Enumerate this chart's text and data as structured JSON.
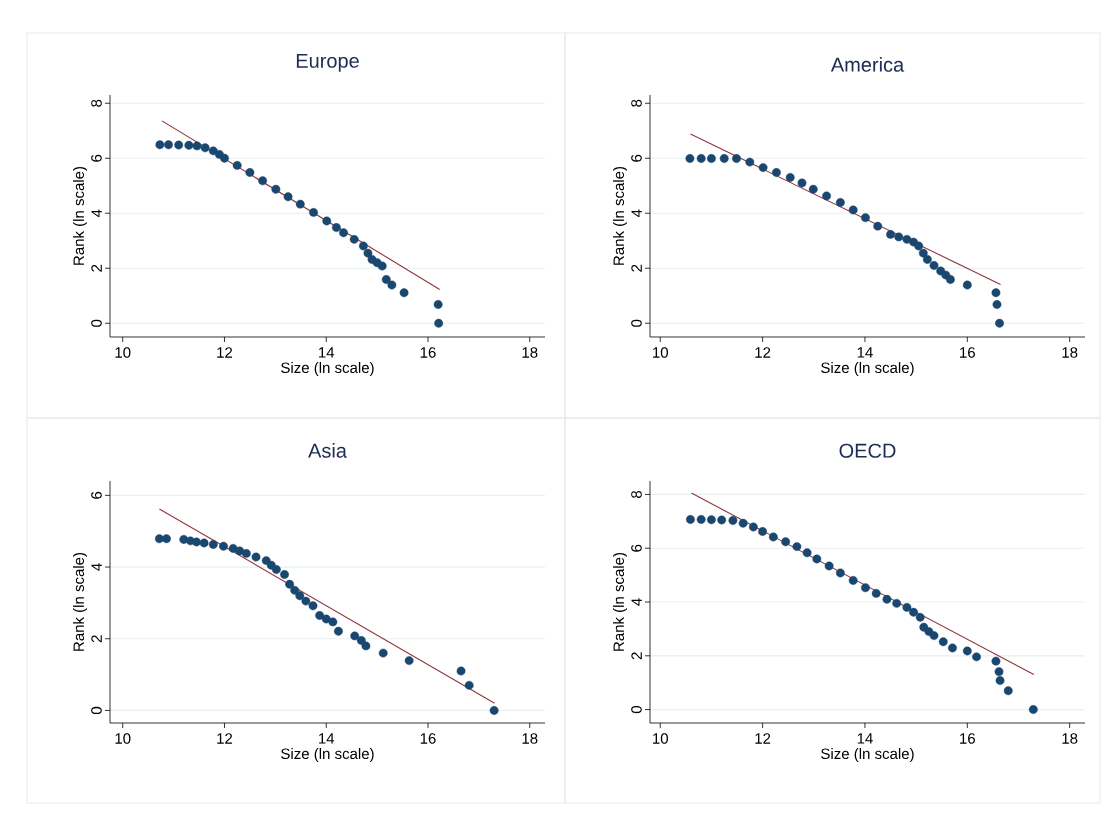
{
  "chart_data": [
    {
      "type": "scatter",
      "title": "Europe",
      "xlabel": "Size (ln scale)",
      "ylabel": "Rank (ln scale)",
      "xlim": [
        9.75,
        18.3
      ],
      "ylim": [
        -0.5,
        8.3
      ],
      "xticks": [
        10,
        12,
        14,
        16,
        18
      ],
      "yticks": [
        0,
        2,
        4,
        6,
        8
      ],
      "grid": "y",
      "series": [
        {
          "type": "scatter",
          "marker": "circle",
          "color": "#1a476f",
          "x": [
            10.73,
            10.9,
            11.1,
            11.3,
            11.46,
            11.62,
            11.78,
            11.9,
            12.0,
            12.25,
            12.5,
            12.75,
            13.01,
            13.25,
            13.49,
            13.75,
            14.01,
            14.2,
            14.34,
            14.55,
            14.73,
            14.82,
            14.9,
            15.0,
            15.1,
            15.18,
            15.29,
            15.53,
            16.2,
            16.21
          ],
          "values": [
            6.49,
            6.49,
            6.48,
            6.47,
            6.45,
            6.38,
            6.27,
            6.14,
            6.0,
            5.74,
            5.48,
            5.18,
            4.87,
            4.6,
            4.33,
            4.03,
            3.72,
            3.48,
            3.29,
            3.05,
            2.81,
            2.55,
            2.32,
            2.2,
            2.08,
            1.59,
            1.39,
            1.11,
            0.68,
            0
          ]
        },
        {
          "type": "line",
          "marker": "none",
          "color": "#90353b",
          "x": [
            10.77,
            16.23
          ],
          "values": [
            7.36,
            1.23
          ]
        }
      ]
    },
    {
      "type": "scatter",
      "title": "America",
      "xlabel": "Size (ln scale)",
      "ylabel": "Rank (ln scale)",
      "xlim": [
        9.8,
        18.3
      ],
      "ylim": [
        -0.5,
        8.3
      ],
      "xticks": [
        10,
        12,
        14,
        16,
        18
      ],
      "yticks": [
        0,
        2,
        4,
        6,
        8
      ],
      "grid": "y",
      "series": [
        {
          "type": "scatter",
          "marker": "circle",
          "color": "#1a476f",
          "x": [
            10.58,
            10.8,
            11.0,
            11.25,
            11.49,
            11.75,
            12.01,
            12.27,
            12.54,
            12.77,
            12.99,
            13.25,
            13.52,
            13.77,
            14.01,
            14.25,
            14.5,
            14.66,
            14.82,
            14.95,
            15.05,
            15.14,
            15.22,
            15.35,
            15.48,
            15.58,
            15.67,
            16.0,
            16.56,
            16.58,
            16.63
          ],
          "values": [
            5.99,
            5.99,
            5.99,
            5.99,
            5.99,
            5.86,
            5.66,
            5.48,
            5.3,
            5.1,
            4.87,
            4.63,
            4.39,
            4.12,
            3.84,
            3.53,
            3.23,
            3.14,
            3.05,
            2.95,
            2.81,
            2.55,
            2.32,
            2.1,
            1.9,
            1.75,
            1.59,
            1.39,
            1.11,
            0.68,
            0
          ]
        },
        {
          "type": "line",
          "marker": "none",
          "color": "#90353b",
          "x": [
            10.59,
            16.65
          ],
          "values": [
            6.88,
            1.41
          ]
        }
      ]
    },
    {
      "type": "scatter",
      "title": "Asia",
      "xlabel": "Size (ln scale)",
      "ylabel": "Rank (ln scale)",
      "xlim": [
        9.75,
        18.3
      ],
      "ylim": [
        -0.35,
        6.4
      ],
      "xticks": [
        10,
        12,
        14,
        16,
        18
      ],
      "yticks": [
        0,
        2,
        4,
        6
      ],
      "grid": "y",
      "series": [
        {
          "type": "scatter",
          "marker": "circle",
          "color": "#1a476f",
          "x": [
            10.72,
            10.86,
            11.2,
            11.33,
            11.45,
            11.6,
            11.78,
            11.98,
            12.17,
            12.3,
            12.43,
            12.62,
            12.82,
            12.92,
            13.02,
            13.18,
            13.28,
            13.38,
            13.48,
            13.6,
            13.74,
            13.87,
            14.0,
            14.13,
            14.24,
            14.56,
            14.69,
            14.78,
            15.12,
            15.63,
            16.65,
            16.81,
            17.3
          ],
          "values": [
            4.79,
            4.79,
            4.77,
            4.73,
            4.7,
            4.67,
            4.63,
            4.58,
            4.52,
            4.45,
            4.38,
            4.28,
            4.18,
            4.05,
            3.93,
            3.79,
            3.52,
            3.35,
            3.2,
            3.05,
            2.92,
            2.65,
            2.55,
            2.47,
            2.21,
            2.08,
            1.95,
            1.8,
            1.6,
            1.39,
            1.1,
            0.7,
            0
          ]
        },
        {
          "type": "line",
          "marker": "none",
          "color": "#90353b",
          "x": [
            10.72,
            17.31
          ],
          "values": [
            5.62,
            0.2
          ]
        }
      ]
    },
    {
      "type": "scatter",
      "title": "OECD",
      "xlabel": "Size (ln scale)",
      "ylabel": "Rank (ln scale)",
      "xlim": [
        9.8,
        18.3
      ],
      "ylim": [
        -0.5,
        8.5
      ],
      "xticks": [
        10,
        12,
        14,
        16,
        18
      ],
      "yticks": [
        0,
        2,
        4,
        6,
        8
      ],
      "grid": "y",
      "series": [
        {
          "type": "scatter",
          "marker": "circle",
          "color": "#1a476f",
          "x": [
            10.59,
            10.8,
            11.0,
            11.2,
            11.42,
            11.62,
            11.82,
            12.0,
            12.21,
            12.45,
            12.67,
            12.87,
            13.06,
            13.3,
            13.52,
            13.77,
            14.01,
            14.22,
            14.43,
            14.62,
            14.82,
            14.95,
            15.08,
            15.15,
            15.25,
            15.35,
            15.53,
            15.71,
            16.0,
            16.18,
            16.56,
            16.62,
            16.64,
            16.8,
            17.29
          ],
          "values": [
            7.07,
            7.07,
            7.06,
            7.05,
            7.03,
            6.93,
            6.79,
            6.62,
            6.42,
            6.24,
            6.06,
            5.83,
            5.6,
            5.34,
            5.08,
            4.8,
            4.53,
            4.32,
            4.1,
            3.95,
            3.8,
            3.62,
            3.43,
            3.06,
            2.9,
            2.75,
            2.52,
            2.29,
            2.18,
            1.96,
            1.8,
            1.41,
            1.08,
            0.7,
            0
          ]
        },
        {
          "type": "line",
          "marker": "none",
          "color": "#90353b",
          "x": [
            10.61,
            17.3
          ],
          "values": [
            8.05,
            1.3
          ]
        }
      ]
    }
  ]
}
